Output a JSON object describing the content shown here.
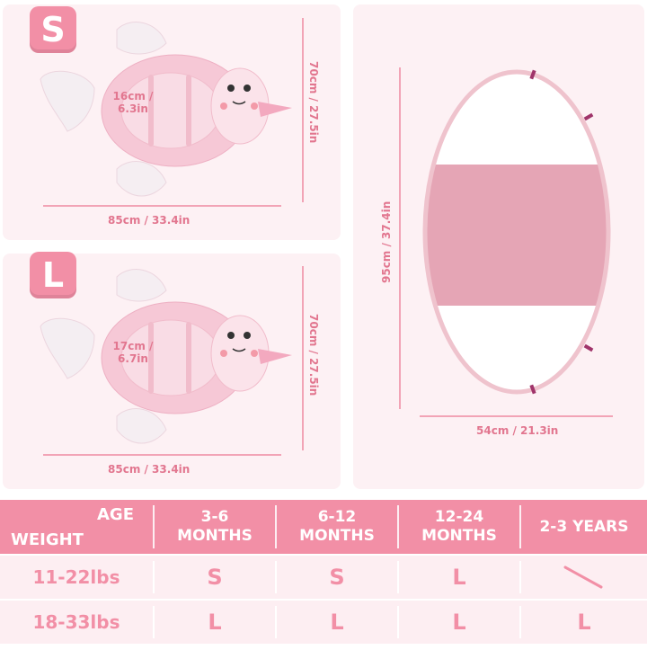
{
  "size_s": {
    "badge": "S",
    "seat": "16cm /\n6.3in",
    "height": "70cm / 27.5in",
    "width": "85cm / 33.4in"
  },
  "size_l": {
    "badge": "L",
    "seat": "17cm /\n6.7in",
    "height": "70cm / 27.5in",
    "width": "85cm / 33.4in"
  },
  "canopy": {
    "height": "95cm / 37.4in",
    "width": "54cm / 21.3in"
  },
  "table": {
    "corner_top": "AGE",
    "corner_bottom": "WEIGHT",
    "columns": [
      "3-6\nMONTHS",
      "6-12\nMONTHS",
      "12-24\nMONTHS",
      "2-3 YEARS"
    ],
    "rows": [
      {
        "weight": "11-22lbs",
        "cells": [
          "S",
          "S",
          "L",
          ""
        ]
      },
      {
        "weight": "18-33lbs",
        "cells": [
          "L",
          "L",
          "L",
          "L"
        ]
      }
    ]
  },
  "colors": {
    "accent": "#f28fa6",
    "panel": "#fdf1f4",
    "canopy": "#e5a5b5"
  }
}
